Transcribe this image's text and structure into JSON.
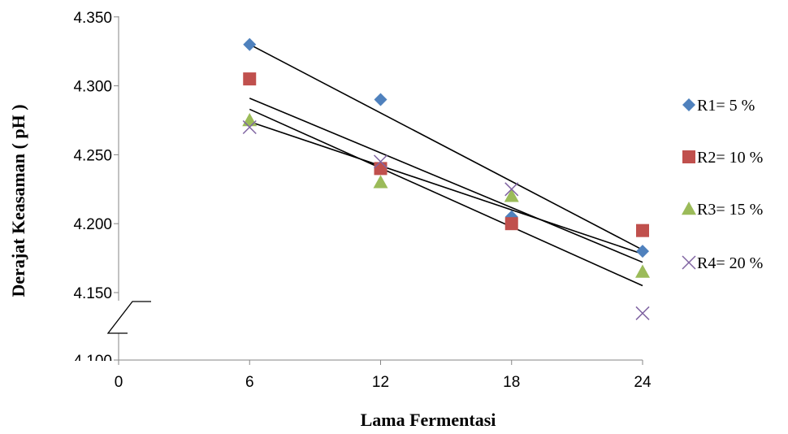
{
  "chart_data": {
    "type": "scatter",
    "title": "",
    "xlabel": "Lama Fermentasi",
    "ylabel": "Derajat Keasaman ( pH )",
    "x_ticks": [
      "0",
      "6",
      "12",
      "18",
      "24"
    ],
    "y_ticks": [
      "4.100",
      "4.150",
      "4.200",
      "4.250",
      "4.300",
      "4.350"
    ],
    "xlim": [
      0,
      24
    ],
    "ylim": [
      4.1,
      4.35
    ],
    "axis_break": true,
    "grid": false,
    "legend_position": "right",
    "trendline_color": "#000000",
    "x": [
      6,
      12,
      18,
      24
    ],
    "series": [
      {
        "name": "R1= 5 %",
        "marker": "diamond",
        "color": "#4f81bd",
        "values": [
          4.33,
          4.29,
          4.205,
          4.18
        ],
        "trend": [
          4.33,
          4.181
        ]
      },
      {
        "name": "R2= 10 %",
        "marker": "square",
        "color": "#c0504d",
        "values": [
          4.305,
          4.24,
          4.2,
          4.195
        ],
        "trend": [
          4.291,
          4.172
        ]
      },
      {
        "name": "R3= 15 %",
        "marker": "triangle",
        "color": "#9bbb59",
        "values": [
          4.275,
          4.23,
          4.22,
          4.165
        ],
        "trend": [
          4.274,
          4.178
        ]
      },
      {
        "name": "R4= 20 %",
        "marker": "x",
        "color": "#8064a2",
        "values": [
          4.27,
          4.245,
          4.225,
          4.135
        ],
        "trend": [
          4.283,
          4.155
        ]
      }
    ]
  }
}
